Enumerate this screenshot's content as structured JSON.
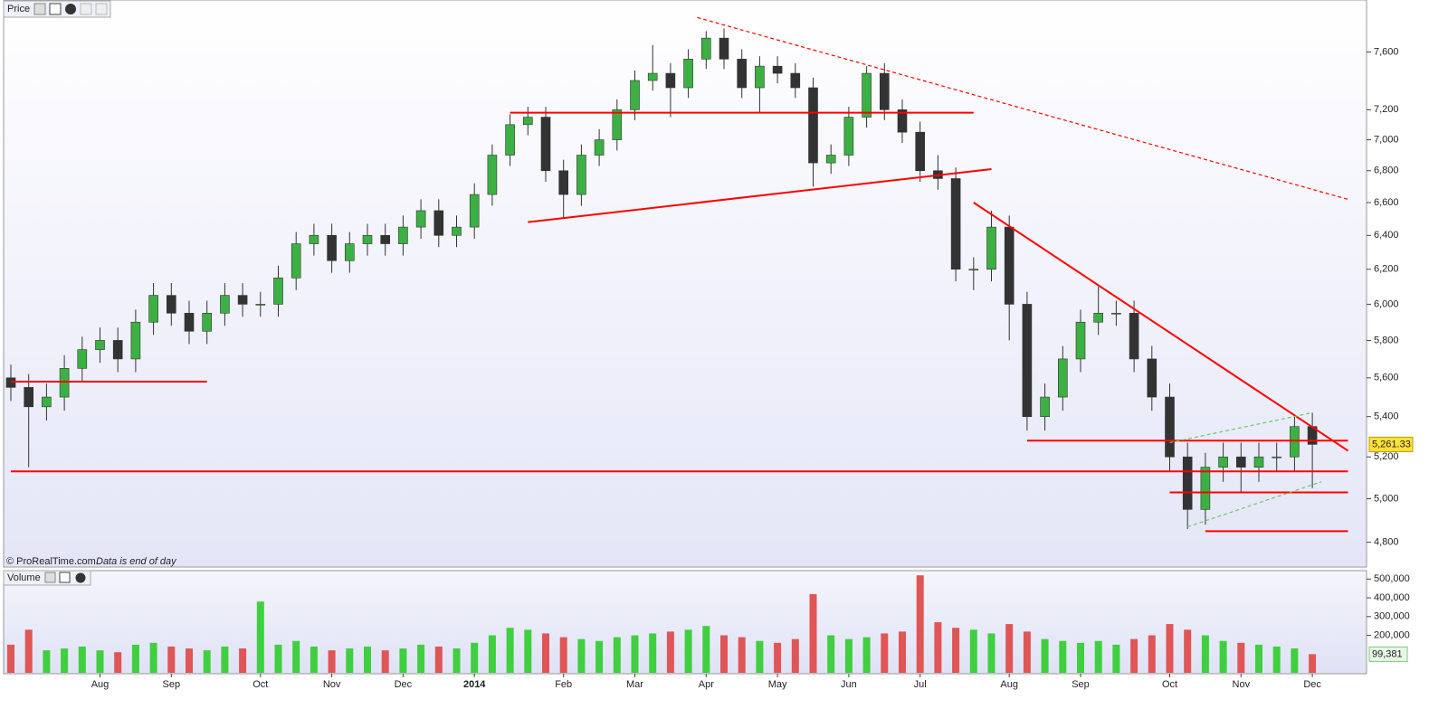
{
  "chart_data": [
    {
      "type": "candlestick",
      "title": "Price",
      "credit": "© ProRealTime.com",
      "note": "Data is end of day",
      "log_scale": true,
      "ylim": [
        4690,
        7980
      ],
      "yticks": [
        {
          "value": 4800,
          "label": "4,800"
        },
        {
          "value": 5000,
          "label": "5,000"
        },
        {
          "value": 5200,
          "label": "5,200"
        },
        {
          "value": 5400,
          "label": "5,400"
        },
        {
          "value": 5600,
          "label": "5,600"
        },
        {
          "value": 5800,
          "label": "5,800"
        },
        {
          "value": 6000,
          "label": "6,000"
        },
        {
          "value": 6200,
          "label": "6,200"
        },
        {
          "value": 6400,
          "label": "6,400"
        },
        {
          "value": 6600,
          "label": "6,600"
        },
        {
          "value": 6800,
          "label": "6,800"
        },
        {
          "value": 7000,
          "label": "7,000"
        },
        {
          "value": 7200,
          "label": "7,200"
        },
        {
          "value": 7600,
          "label": "7,600"
        }
      ],
      "categories": [
        null,
        null,
        null,
        null,
        null,
        "Aug",
        null,
        null,
        null,
        "Sep",
        null,
        null,
        null,
        null,
        "Oct",
        null,
        null,
        null,
        "Nov",
        null,
        null,
        null,
        "Dec",
        null,
        null,
        null,
        "2014",
        null,
        null,
        null,
        null,
        "Feb",
        null,
        null,
        null,
        "Mar",
        null,
        null,
        null,
        "Apr",
        null,
        null,
        null,
        "May",
        null,
        null,
        null,
        "Jun",
        null,
        null,
        null,
        "Jul",
        null,
        null,
        null,
        null,
        "Aug",
        null,
        null,
        null,
        "Sep",
        null,
        null,
        null,
        null,
        "Oct",
        null,
        null,
        null,
        "Nov",
        null,
        null,
        null,
        "Dec"
      ],
      "up_color": "#3cb043",
      "down_color": "#333333",
      "open": [
        5600,
        5550,
        5450,
        5500,
        5650,
        5750,
        5800,
        5700,
        5900,
        6050,
        5950,
        5850,
        5950,
        6050,
        6000,
        6000,
        6150,
        6350,
        6400,
        6250,
        6350,
        6400,
        6350,
        6450,
        6550,
        6400,
        6450,
        6650,
        6900,
        7100,
        7150,
        6800,
        6650,
        6900,
        7000,
        7200,
        7400,
        7450,
        7350,
        7550,
        7700,
        7550,
        7350,
        7500,
        7450,
        7350,
        6850,
        6900,
        7150,
        7450,
        7200,
        7050,
        6800,
        6750,
        6200,
        6200,
        6450,
        6000,
        5400,
        5500,
        5700,
        5900,
        5950,
        5950,
        5700,
        5500,
        5200,
        4950,
        5150,
        5200,
        5150,
        5200,
        5200,
        5350
      ],
      "high": [
        5670,
        5620,
        5570,
        5720,
        5820,
        5870,
        5870,
        5970,
        6120,
        6120,
        6020,
        6020,
        6120,
        6120,
        6070,
        6220,
        6420,
        6470,
        6470,
        6420,
        6470,
        6470,
        6520,
        6620,
        6620,
        6520,
        6720,
        6970,
        7170,
        7220,
        7220,
        6870,
        6970,
        7070,
        7270,
        7470,
        7650,
        7520,
        7620,
        7750,
        7770,
        7620,
        7570,
        7570,
        7520,
        7420,
        6970,
        7220,
        7500,
        7520,
        7270,
        7120,
        6900,
        6820,
        6270,
        6550,
        6520,
        6070,
        5570,
        5770,
        5970,
        6100,
        6020,
        6020,
        5770,
        5570,
        5270,
        5220,
        5270,
        5270,
        5270,
        5270,
        5400,
        5420
      ],
      "low": [
        5480,
        5150,
        5380,
        5430,
        5580,
        5680,
        5630,
        5630,
        5830,
        5880,
        5780,
        5780,
        5880,
        5930,
        5930,
        5930,
        6080,
        6280,
        6180,
        6180,
        6280,
        6280,
        6280,
        6380,
        6330,
        6330,
        6380,
        6580,
        6830,
        7030,
        6730,
        6500,
        6580,
        6830,
        6930,
        7130,
        7330,
        7150,
        7280,
        7480,
        7480,
        7280,
        7180,
        7380,
        7280,
        6700,
        6780,
        6830,
        7080,
        7130,
        6980,
        6730,
        6680,
        6130,
        6080,
        6130,
        5800,
        5330,
        5330,
        5430,
        5630,
        5830,
        5880,
        5630,
        5430,
        5130,
        4860,
        4880,
        5080,
        5030,
        5080,
        5130,
        5130,
        5050
      ],
      "close": [
        5550,
        5450,
        5500,
        5650,
        5750,
        5800,
        5700,
        5900,
        6050,
        5950,
        5850,
        5950,
        6050,
        6000,
        6000,
        6150,
        6350,
        6400,
        6250,
        6350,
        6400,
        6350,
        6450,
        6550,
        6400,
        6450,
        6650,
        6900,
        7100,
        7150,
        6800,
        6650,
        6900,
        7000,
        7200,
        7400,
        7450,
        7350,
        7550,
        7700,
        7550,
        7350,
        7500,
        7450,
        7350,
        6850,
        6900,
        7150,
        7450,
        7200,
        7050,
        6800,
        6750,
        6200,
        6200,
        6450,
        6000,
        5400,
        5500,
        5700,
        5900,
        5950,
        5950,
        5700,
        5500,
        5200,
        4950,
        5150,
        5200,
        5150,
        5200,
        5200,
        5350,
        5261.33
      ],
      "last_label": "5,261.33",
      "lines": [
        {
          "x": [
            0,
            11
          ],
          "y": [
            5580,
            5580
          ],
          "color": "#ff0000",
          "dashed": false
        },
        {
          "x": [
            0,
            75
          ],
          "y": [
            5130,
            5130
          ],
          "color": "#ff0000",
          "dashed": false
        },
        {
          "x": [
            28,
            54
          ],
          "y": [
            7180,
            7180
          ],
          "color": "#ff0000",
          "dashed": false
        },
        {
          "x": [
            29,
            55
          ],
          "y": [
            6480,
            6810
          ],
          "color": "#ff0000",
          "dashed": false
        },
        {
          "x": [
            54,
            75
          ],
          "y": [
            6600,
            5230
          ],
          "color": "#ff0000",
          "dashed": false
        },
        {
          "x": [
            38.5,
            75
          ],
          "y": [
            7850,
            6620
          ],
          "color": "#ff0000",
          "dashed": true
        },
        {
          "x": [
            57,
            75
          ],
          "y": [
            5280,
            5280
          ],
          "color": "#ff0000",
          "dashed": false
        },
        {
          "x": [
            65,
            75
          ],
          "y": [
            5030,
            5030
          ],
          "color": "#ff0000",
          "dashed": false
        },
        {
          "x": [
            67,
            75
          ],
          "y": [
            4850,
            4850
          ],
          "color": "#ff0000",
          "dashed": false
        },
        {
          "x": [
            65,
            73
          ],
          "y": [
            5270,
            5420
          ],
          "color": "#66cc66",
          "dashed": true
        },
        {
          "x": [
            66,
            73.5
          ],
          "y": [
            4870,
            5080
          ],
          "color": "#66cc66",
          "dashed": true
        }
      ]
    },
    {
      "type": "bar",
      "title": "Volume",
      "ylim": [
        0,
        545000
      ],
      "yticks": [
        {
          "value": 200000,
          "label": "200,000"
        },
        {
          "value": 300000,
          "label": "300,000"
        },
        {
          "value": 400000,
          "label": "400,000"
        },
        {
          "value": 500000,
          "label": "500,000"
        }
      ],
      "up_color": "#3fcf3f",
      "down_color": "#e05555",
      "values": [
        150000,
        230000,
        120000,
        130000,
        140000,
        120000,
        110000,
        150000,
        160000,
        140000,
        130000,
        120000,
        140000,
        130000,
        380000,
        150000,
        170000,
        140000,
        120000,
        130000,
        140000,
        120000,
        130000,
        150000,
        140000,
        130000,
        160000,
        200000,
        240000,
        230000,
        210000,
        190000,
        180000,
        170000,
        190000,
        200000,
        210000,
        220000,
        230000,
        250000,
        200000,
        190000,
        170000,
        160000,
        180000,
        420000,
        200000,
        180000,
        190000,
        210000,
        220000,
        520000,
        270000,
        240000,
        230000,
        210000,
        260000,
        220000,
        180000,
        170000,
        160000,
        170000,
        150000,
        180000,
        200000,
        260000,
        230000,
        200000,
        170000,
        160000,
        150000,
        140000,
        130000,
        99381
      ],
      "last_label": "99,381"
    }
  ]
}
